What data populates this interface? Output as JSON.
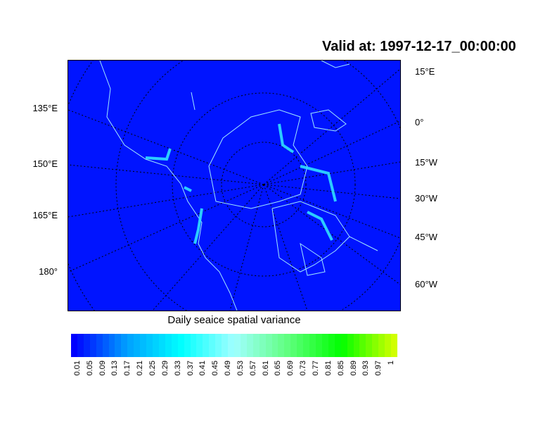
{
  "title": "Valid at: 1997-12-17_00:00:00",
  "map": {
    "background_color": "#0014ff",
    "coastline_color": "#a0e8ff",
    "grid_style": "dotted",
    "left_labels": [
      "135°E",
      "150°E",
      "165°E",
      "180°"
    ],
    "right_labels": [
      "15°E",
      "0°",
      "15°W",
      "30°W",
      "45°W",
      "60°W"
    ]
  },
  "colorbar": {
    "label": "Daily seaice spatial variance",
    "ticks": [
      "0.01",
      "0.05",
      "0.09",
      "0.13",
      "0.17",
      "0.21",
      "0.25",
      "0.29",
      "0.33",
      "0.37",
      "0.41",
      "0.45",
      "0.49",
      "0.53",
      "0.57",
      "0.61",
      "0.65",
      "0.69",
      "0.73",
      "0.77",
      "0.81",
      "0.85",
      "0.89",
      "0.93",
      "0.97",
      "1"
    ],
    "color_stops": [
      "#0000ff",
      "#00a0ff",
      "#00ffff",
      "#a0ffff",
      "#60ff80",
      "#00ff00",
      "#d0ff00"
    ]
  }
}
